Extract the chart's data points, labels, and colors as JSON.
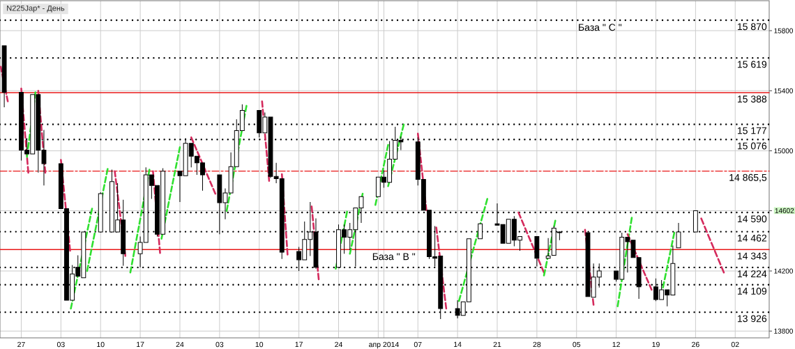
{
  "chart_data": {
    "type": "candlestick",
    "title": "N225Jap* - День",
    "x": [
      "2014-01-24",
      "2014-01-27",
      "2014-01-28",
      "2014-01-29",
      "2014-01-30",
      "2014-01-31",
      "2014-02-03",
      "2014-02-04",
      "2014-02-05",
      "2014-02-06",
      "2014-02-07",
      "2014-02-10",
      "2014-02-12",
      "2014-02-13",
      "2014-02-14",
      "2014-02-17",
      "2014-02-18",
      "2014-02-19",
      "2014-02-20",
      "2014-02-21",
      "2014-02-24",
      "2014-02-25",
      "2014-02-26",
      "2014-02-27",
      "2014-02-28",
      "2014-03-03",
      "2014-03-04",
      "2014-03-05",
      "2014-03-06",
      "2014-03-07",
      "2014-03-10",
      "2014-03-11",
      "2014-03-12",
      "2014-03-13",
      "2014-03-14",
      "2014-03-17",
      "2014-03-18",
      "2014-03-19",
      "2014-03-20",
      "2014-03-24",
      "2014-03-25",
      "2014-03-26",
      "2014-03-27",
      "2014-03-28",
      "2014-03-31",
      "2014-04-01",
      "2014-04-02",
      "2014-04-03",
      "2014-04-04",
      "2014-04-07",
      "2014-04-08",
      "2014-04-09",
      "2014-04-10",
      "2014-04-11",
      "2014-04-14",
      "2014-04-15",
      "2014-04-16",
      "2014-04-18",
      "2014-04-21",
      "2014-04-22",
      "2014-04-23",
      "2014-04-24",
      "2014-04-25",
      "2014-04-28",
      "2014-04-30",
      "2014-05-01",
      "2014-05-02",
      "2014-05-07",
      "2014-05-08",
      "2014-05-09",
      "2014-05-12",
      "2014-05-13",
      "2014-05-14",
      "2014-05-15",
      "2014-05-16",
      "2014-05-19",
      "2014-05-20",
      "2014-05-21",
      "2014-05-22",
      "2014-05-23",
      "2014-05-26"
    ],
    "ohlc": [
      [
        15700,
        15700,
        15290,
        15390
      ],
      [
        15390,
        15390,
        14935,
        15005
      ],
      [
        15005,
        15085,
        14980,
        14980
      ],
      [
        14980,
        15375,
        14980,
        15375
      ],
      [
        15375,
        15375,
        14855,
        15005
      ],
      [
        15005,
        15140,
        14770,
        14915
      ],
      [
        14915,
        14915,
        14615,
        14615
      ],
      [
        14615,
        14615,
        14005,
        14005
      ],
      [
        14005,
        14240,
        14005,
        14180
      ],
      [
        14225,
        14305,
        14165,
        14165
      ],
      [
        14155,
        14460,
        14155,
        14460
      ],
      [
        14460,
        14725,
        14460,
        14715
      ],
      [
        14460,
        14875,
        14460,
        14795
      ],
      [
        14460,
        14785,
        14460,
        14540
      ],
      [
        14540,
        14675,
        14235,
        14315
      ],
      [
        14315,
        14430,
        14225,
        14390
      ],
      [
        14390,
        14890,
        14390,
        14840
      ],
      [
        14840,
        14840,
        14680,
        14770
      ],
      [
        14770,
        14770,
        14430,
        14445
      ],
      [
        14445,
        14885,
        14445,
        14865
      ],
      [
        14865,
        14865,
        14660,
        14835
      ],
      [
        14835,
        15085,
        14835,
        15050
      ],
      [
        15050,
        15050,
        14890,
        14965
      ],
      [
        14965,
        14965,
        14840,
        14920
      ],
      [
        14920,
        14920,
        14735,
        14840
      ],
      [
        14840,
        14840,
        14445,
        14655
      ],
      [
        14655,
        14750,
        14545,
        14720
      ],
      [
        14720,
        14990,
        14720,
        14895
      ],
      [
        14895,
        15210,
        14895,
        15135
      ],
      [
        15135,
        15310,
        15135,
        15270
      ],
      [
        15270,
        15270,
        15090,
        15120
      ],
      [
        15120,
        15255,
        15120,
        15225
      ],
      [
        15225,
        15225,
        14820,
        14830
      ],
      [
        14830,
        14920,
        14785,
        14815
      ],
      [
        14815,
        14815,
        14280,
        14325
      ],
      [
        14330,
        14360,
        14200,
        14275
      ],
      [
        14275,
        14530,
        14275,
        14410
      ],
      [
        14410,
        14660,
        14300,
        14460
      ],
      [
        14460,
        14550,
        14215,
        14225
      ],
      [
        14225,
        14510,
        14225,
        14475
      ],
      [
        14475,
        14510,
        14315,
        14425
      ],
      [
        14425,
        14520,
        14340,
        14475
      ],
      [
        14475,
        14620,
        14230,
        14620
      ],
      [
        14620,
        14695,
        14520,
        14695
      ],
      [
        14695,
        14825,
        14695,
        14825
      ],
      [
        14825,
        14870,
        14755,
        14790
      ],
      [
        14790,
        15065,
        14790,
        14945
      ],
      [
        14945,
        15160,
        14945,
        15070
      ],
      [
        15070,
        15095,
        15005,
        15060
      ],
      [
        15060,
        15090,
        14770,
        14810
      ],
      [
        14810,
        14810,
        14605,
        14605
      ],
      [
        14605,
        14605,
        14280,
        14295
      ],
      [
        14295,
        14500,
        14230,
        14285
      ],
      [
        14300,
        14300,
        13880,
        13950
      ],
      [
        13950,
        14005,
        13885,
        13905
      ],
      [
        13905,
        13995,
        13905,
        13995
      ],
      [
        13995,
        14415,
        13995,
        14415
      ],
      [
        14415,
        14515,
        14415,
        14515
      ],
      [
        14515,
        14650,
        14505,
        14505
      ],
      [
        14510,
        14510,
        14385,
        14385
      ],
      [
        14385,
        14545,
        14385,
        14545
      ],
      [
        14545,
        14565,
        14365,
        14405
      ],
      [
        14405,
        14430,
        14335,
        14430
      ],
      [
        14430,
        14430,
        14230,
        14285
      ],
      [
        14285,
        14420,
        14285,
        14300
      ],
      [
        14305,
        14500,
        14305,
        14485
      ],
      [
        14455,
        14465,
        14405,
        14460
      ],
      [
        14455,
        14455,
        14030,
        14030
      ],
      [
        14025,
        14250,
        14025,
        14160
      ],
      [
        14160,
        14250,
        14090,
        14200
      ],
      [
        14200,
        14200,
        14130,
        14145
      ],
      [
        14145,
        14455,
        14145,
        14425
      ],
      [
        14425,
        14425,
        14190,
        14395
      ],
      [
        14405,
        14405,
        14290,
        14290
      ],
      [
        14290,
        14290,
        14015,
        14095
      ],
      [
        14095,
        14150,
        14000,
        14010
      ],
      [
        14010,
        14140,
        14010,
        14075
      ],
      [
        14075,
        14075,
        13965,
        14040
      ],
      [
        14040,
        14370,
        14040,
        14250
      ],
      [
        14355,
        14520,
        14355,
        14460
      ],
      [
        14460,
        14602,
        14460,
        14602
      ]
    ],
    "series": [
      {
        "type": "line",
        "color": "#d42a5c",
        "x": [
          "2014-01-23T09:00",
          "2014-01-24T15:00"
        ],
        "values": [
          15560,
          15330
        ]
      },
      {
        "type": "line",
        "color": "#d42a5c",
        "x": [
          "2014-01-27",
          "2014-01-28T06:00"
        ],
        "values": [
          15415,
          14855
        ]
      },
      {
        "type": "line",
        "color": "#2fe02f",
        "x": [
          "2014-01-28",
          "2014-01-29T12:00"
        ],
        "values": [
          14960,
          15390
        ]
      },
      {
        "type": "line",
        "color": "#d42a5c",
        "x": [
          "2014-01-30",
          "2014-01-31T06:00"
        ],
        "values": [
          15400,
          14855
        ]
      },
      {
        "type": "line",
        "color": "#d42a5c",
        "x": [
          "2014-02-03",
          "2014-02-04T15:00"
        ],
        "values": [
          14940,
          14335
        ]
      },
      {
        "type": "line",
        "color": "#2fe02f",
        "x": [
          "2014-02-04T18:00",
          "2014-02-08T12:00"
        ],
        "values": [
          13950,
          14615
        ]
      },
      {
        "type": "line",
        "color": "#2fe02f",
        "x": [
          "2014-02-07T15:00",
          "2014-02-11T06:00"
        ],
        "values": [
          14200,
          14880
        ]
      },
      {
        "type": "line",
        "color": "#d42a5c",
        "x": [
          "2014-02-12T12:00",
          "2014-02-14T09:00"
        ],
        "values": [
          14865,
          14300
        ]
      },
      {
        "type": "line",
        "color": "#2fe02f",
        "x": [
          "2014-02-15T06:00",
          "2014-02-18T15:00"
        ],
        "values": [
          14190,
          14875
        ]
      },
      {
        "type": "line",
        "color": "#d42a5c",
        "x": [
          "2014-02-19T06:00",
          "2014-02-20T12:00"
        ],
        "values": [
          14865,
          14320
        ]
      },
      {
        "type": "line",
        "color": "#2fe02f",
        "x": [
          "2014-02-20T18:00",
          "2014-02-24"
        ],
        "values": [
          14415,
          15025
        ]
      },
      {
        "type": "line",
        "color": "#d42a5c",
        "x": [
          "2014-02-26",
          "2014-03-02T06:00"
        ],
        "values": [
          15090,
          14715
        ]
      },
      {
        "type": "line",
        "color": "#2fe02f",
        "x": [
          "2014-03-04T06:00",
          "2014-03-07T18:00"
        ],
        "values": [
          14600,
          15300
        ]
      },
      {
        "type": "line",
        "color": "#d42a5c",
        "x": [
          "2014-03-10T12:00",
          "2014-03-11T18:00"
        ],
        "values": [
          15330,
          14800
        ]
      },
      {
        "type": "line",
        "color": "#d42a5c",
        "x": [
          "2014-03-14",
          "2014-03-15"
        ],
        "values": [
          14845,
          14310
        ]
      },
      {
        "type": "line",
        "color": "#d42a5c",
        "x": [
          "2014-03-19T06:00",
          "2014-03-20T12:00"
        ],
        "values": [
          14630,
          14145
        ]
      },
      {
        "type": "line",
        "color": "#2fe02f",
        "x": [
          "2014-03-23T12:00",
          "2014-03-25T12:00"
        ],
        "values": [
          14215,
          14595
        ]
      },
      {
        "type": "line",
        "color": "#2fe02f",
        "x": [
          "2014-03-26",
          "2014-03-28T06:00"
        ],
        "values": [
          14315,
          14715
        ]
      },
      {
        "type": "line",
        "color": "#2fe02f",
        "x": [
          "2014-03-30T12:00",
          "2014-04-01T18:00"
        ],
        "values": [
          14640,
          15040
        ]
      },
      {
        "type": "line",
        "color": "#2fe02f",
        "x": [
          "2014-04-01T18:00",
          "2014-04-04T12:00"
        ],
        "values": [
          14765,
          15175
        ]
      },
      {
        "type": "line",
        "color": "#d42a5c",
        "x": [
          "2014-04-07",
          "2014-04-08T12:00"
        ],
        "values": [
          15115,
          14605
        ]
      },
      {
        "type": "line",
        "color": "#d42a5c",
        "x": [
          "2014-04-10T06:00",
          "2014-04-12"
        ],
        "values": [
          14490,
          13950
        ]
      },
      {
        "type": "line",
        "color": "#2fe02f",
        "x": [
          "2014-04-14T06:00",
          "2014-04-19T06:00"
        ],
        "values": [
          14000,
          14680
        ]
      },
      {
        "type": "line",
        "color": "#d42a5c",
        "x": [
          "2014-04-24T18:00",
          "2014-04-29T06:00"
        ],
        "values": [
          14590,
          14190
        ]
      },
      {
        "type": "line",
        "color": "#2fe02f",
        "x": [
          "2014-04-29T06:00",
          "2014-05-01T06:00"
        ],
        "values": [
          14170,
          14535
        ]
      },
      {
        "type": "line",
        "color": "#d42a5c",
        "x": [
          "2014-05-06T12:00",
          "2014-05-08"
        ],
        "values": [
          14475,
          13975
        ]
      },
      {
        "type": "line",
        "color": "#2fe02f",
        "x": [
          "2014-05-12T06:00",
          "2014-05-14T18:00"
        ],
        "values": [
          13965,
          14555
        ]
      },
      {
        "type": "line",
        "color": "#d42a5c",
        "x": [
          "2014-05-14",
          "2014-05-18T06:00"
        ],
        "values": [
          14445,
          14075
        ]
      },
      {
        "type": "line",
        "color": "#2fe02f",
        "x": [
          "2014-05-20T06:00",
          "2014-05-22T06:00"
        ],
        "values": [
          14090,
          14455
        ]
      },
      {
        "type": "line",
        "color": "#d42a5c",
        "x": [
          "2014-05-27",
          "2014-05-31"
        ],
        "values": [
          14550,
          14190
        ]
      }
    ],
    "line_style": "dashed",
    "xlim": [
      "2014-01-23T06:00",
      "2014-06-08"
    ],
    "xticks": [
      {
        "value": "2014-01-27",
        "label": "27"
      },
      {
        "value": "2014-02-03",
        "label": "03"
      },
      {
        "value": "2014-02-10",
        "label": "10"
      },
      {
        "value": "2014-02-17",
        "label": "17"
      },
      {
        "value": "2014-02-24",
        "label": "24"
      },
      {
        "value": "2014-03-03",
        "label": "03"
      },
      {
        "value": "2014-03-10",
        "label": "10"
      },
      {
        "value": "2014-03-17",
        "label": "17"
      },
      {
        "value": "2014-03-24",
        "label": "24"
      },
      {
        "value": "2014-03-31",
        "label": null
      },
      {
        "value": "2014-04-01",
        "label": "апр 2014"
      },
      {
        "value": "2014-04-07",
        "label": "07"
      },
      {
        "value": "2014-04-14",
        "label": "14"
      },
      {
        "value": "2014-04-21",
        "label": "21"
      },
      {
        "value": "2014-04-28",
        "label": "28"
      },
      {
        "value": "2014-05-05",
        "label": "05"
      },
      {
        "value": "2014-05-12",
        "label": "12"
      },
      {
        "value": "2014-05-19",
        "label": "19"
      },
      {
        "value": "2014-05-26",
        "label": "26"
      },
      {
        "value": "2014-06-02",
        "label": "02"
      }
    ],
    "ylim": [
      13755,
      16000
    ],
    "yticks": [
      13800,
      14200,
      14602,
      15000,
      15400,
      15800
    ],
    "grid": true,
    "ref_lines": [
      {
        "axis": "y",
        "value": 15870,
        "label": "15 870",
        "color": "#000000",
        "line_style": "dotted"
      },
      {
        "axis": "y",
        "value": 15619,
        "label": "15 619",
        "color": "#000000",
        "line_style": "dotted"
      },
      {
        "axis": "y",
        "value": 15388,
        "label": "15 388",
        "color": "#e81818",
        "line_style": "solid"
      },
      {
        "axis": "y",
        "value": 15177,
        "label": "15 177",
        "color": "#000000",
        "line_style": "dotted"
      },
      {
        "axis": "y",
        "value": 15076,
        "label": "15 076",
        "color": "#000000",
        "line_style": "dotted"
      },
      {
        "axis": "y",
        "value": 14865.5,
        "label": "14 865,5",
        "color": "#e81818",
        "line_style": "dashed"
      },
      {
        "axis": "y",
        "value": 14590,
        "label": "14 590",
        "color": "#000000",
        "line_style": "dotted"
      },
      {
        "axis": "y",
        "value": 14462,
        "label": "14 462",
        "color": "#000000",
        "line_style": "dotted"
      },
      {
        "axis": "y",
        "value": 14343,
        "label": "14 343",
        "color": "#e81818",
        "line_style": "solid"
      },
      {
        "axis": "y",
        "value": 14224,
        "label": "14 224",
        "color": "#000000",
        "line_style": "dotted"
      },
      {
        "axis": "y",
        "value": 14109,
        "label": "14 109",
        "color": "#000000",
        "line_style": "dotted"
      },
      {
        "axis": "y",
        "value": 13926,
        "label": "13 926",
        "color": "#000000",
        "line_style": "dotted"
      }
    ],
    "annotations": [
      {
        "text": "База \" С \"",
        "y": 15870
      },
      {
        "text": "База \" В \"",
        "y": 14343
      }
    ]
  }
}
